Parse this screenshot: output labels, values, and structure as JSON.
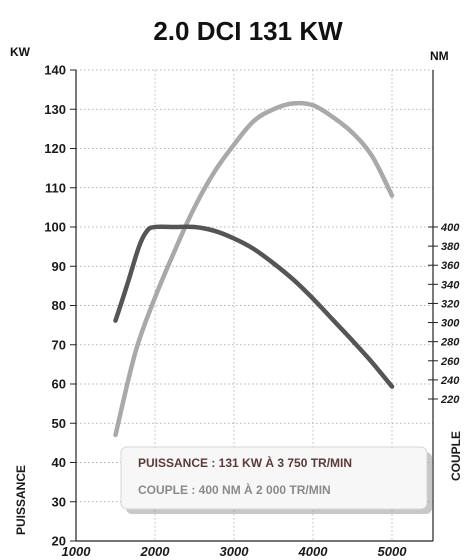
{
  "chart_data": {
    "type": "line",
    "title": "2.0 DCI 131 KW",
    "y_left_unit": "KW",
    "y_right_unit": "NM",
    "y_left_label": "PUISSANCE",
    "y_right_label": "COUPLE",
    "xlim": [
      1000,
      5000
    ],
    "x_ticks": [
      "1000",
      "2000",
      "3000",
      "4000",
      "5000"
    ],
    "ylim_left": [
      20,
      140
    ],
    "y_left_ticks": [
      "20",
      "30",
      "40",
      "50",
      "60",
      "70",
      "80",
      "90",
      "100",
      "110",
      "120",
      "130",
      "140"
    ],
    "ylim_right": [
      220,
      400
    ],
    "y_right_ticks": [
      "220",
      "240",
      "260",
      "280",
      "300",
      "320",
      "340",
      "360",
      "380",
      "400"
    ],
    "grid": true,
    "series": [
      {
        "id": "puissance",
        "axis": "left",
        "color": "#a9a9a9",
        "x": [
          1500,
          1750,
          2000,
          2250,
          2500,
          2750,
          3000,
          3250,
          3500,
          3750,
          4000,
          4250,
          4500,
          4750,
          5000
        ],
        "y": [
          47,
          68,
          82,
          94,
          105,
          114,
          121,
          127,
          130,
          131.5,
          131,
          128,
          124,
          118,
          108
        ]
      },
      {
        "id": "couple",
        "axis": "right",
        "color": "#555555",
        "x": [
          1500,
          1650,
          1800,
          1900,
          2000,
          2250,
          2500,
          2750,
          3000,
          3250,
          3500,
          3750,
          4000,
          4250,
          4500,
          4750,
          5000
        ],
        "y": [
          302,
          340,
          380,
          396,
          400,
          400,
          400,
          396,
          388,
          377,
          362,
          345,
          325,
          303,
          281,
          258,
          233
        ]
      }
    ],
    "annotation": {
      "line1": "PUISSANCE : 131 KW À 3 750 TR/MIN",
      "line2": "COUPLE : 400 NM À 2 000 TR/MIN"
    }
  }
}
